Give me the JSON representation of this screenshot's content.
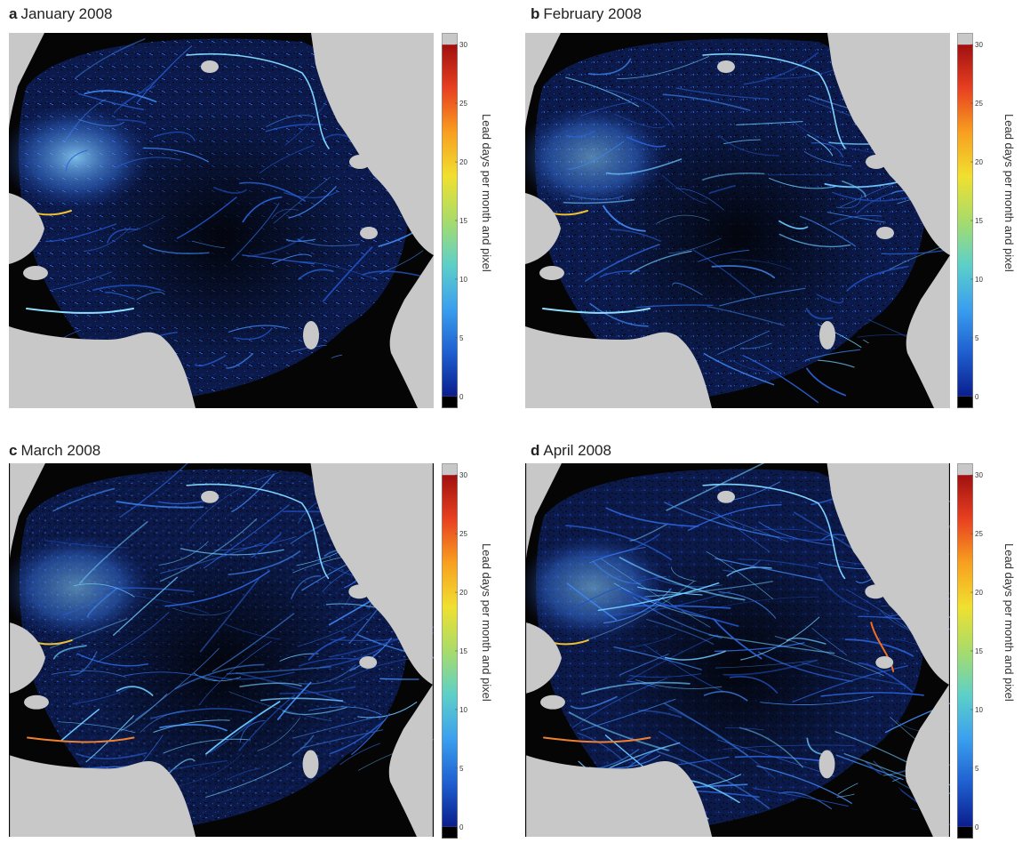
{
  "panels": [
    {
      "letter": "a",
      "title": "January 2008"
    },
    {
      "letter": "b",
      "title": "February 2008"
    },
    {
      "letter": "c",
      "title": "March 2008"
    },
    {
      "letter": "d",
      "title": "April 2008"
    }
  ],
  "colorbar": {
    "label": "Lead days per month and pixel",
    "ticks": [
      "0",
      "5",
      "10",
      "15",
      "20",
      "25",
      "30"
    ],
    "range": [
      0,
      30
    ],
    "colors": [
      "#000000",
      "#0a1e8c",
      "#1f5fd0",
      "#3aa0ee",
      "#5ed0c8",
      "#a8dc6a",
      "#f0e030",
      "#f8a020",
      "#e84020",
      "#a01010",
      "#c8c8c8"
    ]
  },
  "map": {
    "land_color": "#c8c8c8",
    "ocean_color": "#050505",
    "lead_color": "#2a5cd0"
  }
}
